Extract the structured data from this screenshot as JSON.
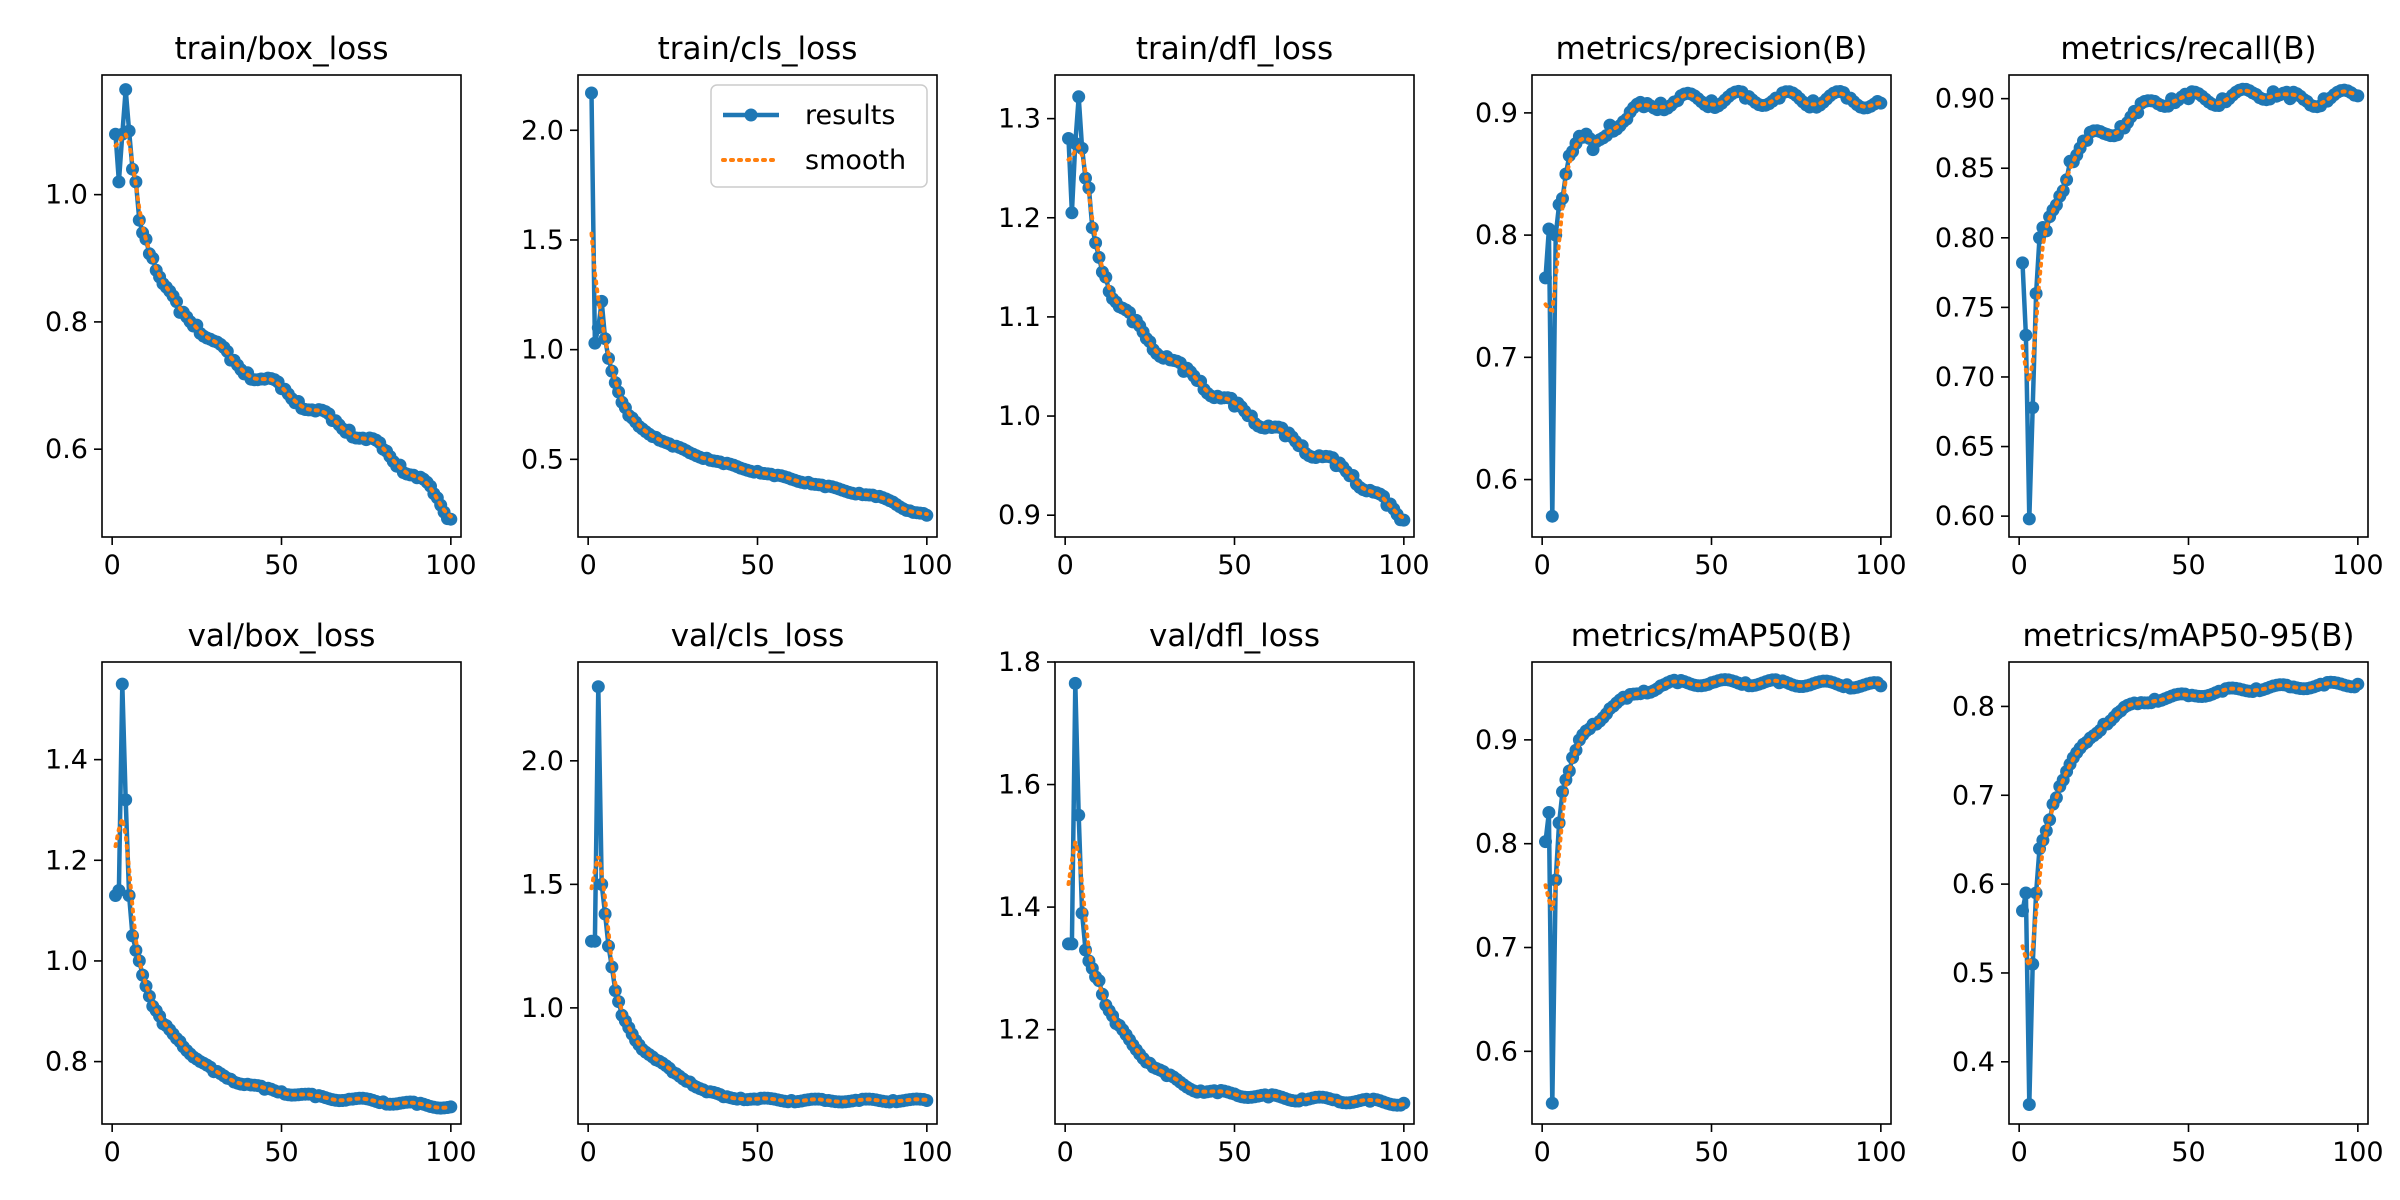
{
  "figure": {
    "rows": 2,
    "cols": 5,
    "colors": {
      "results": "#1f77b4",
      "smooth": "#ff7f0e",
      "axes": "#000000",
      "background": "#ffffff"
    },
    "legend": {
      "panel_index": 1,
      "placement": "upper right",
      "entries": [
        "results",
        "smooth"
      ]
    }
  },
  "chart_data": [
    {
      "type": "line",
      "title": "train/box_loss",
      "xlim": [
        -3,
        103
      ],
      "ylim": [
        0.462,
        1.188
      ],
      "xticks": [
        0,
        50,
        100
      ],
      "xtick_labels": [
        "0",
        "50",
        "100"
      ],
      "yticks": [
        0.6,
        0.8,
        1.0
      ],
      "ytick_labels": [
        "0.6",
        "0.8",
        "1.0"
      ],
      "key_points": [
        [
          1,
          1.095
        ],
        [
          2,
          1.02
        ],
        [
          3,
          1.095
        ],
        [
          4,
          1.165
        ],
        [
          5,
          1.1
        ],
        [
          6,
          1.04
        ],
        [
          7,
          1.02
        ],
        [
          8,
          0.96
        ],
        [
          10,
          0.93
        ],
        [
          12,
          0.9
        ],
        [
          15,
          0.86
        ],
        [
          20,
          0.815
        ],
        [
          25,
          0.795
        ],
        [
          30,
          0.77
        ],
        [
          35,
          0.74
        ],
        [
          40,
          0.72
        ],
        [
          45,
          0.71
        ],
        [
          50,
          0.695
        ],
        [
          55,
          0.675
        ],
        [
          60,
          0.66
        ],
        [
          65,
          0.645
        ],
        [
          70,
          0.63
        ],
        [
          75,
          0.615
        ],
        [
          80,
          0.6
        ],
        [
          85,
          0.575
        ],
        [
          90,
          0.555
        ],
        [
          95,
          0.53
        ],
        [
          100,
          0.49
        ]
      ],
      "noise": 0.008
    },
    {
      "type": "line",
      "title": "train/cls_loss",
      "xlim": [
        -3,
        103
      ],
      "ylim": [
        0.146,
        2.252
      ],
      "xticks": [
        0,
        50,
        100
      ],
      "xtick_labels": [
        "0",
        "50",
        "100"
      ],
      "yticks": [
        0.5,
        1.0,
        1.5,
        2.0
      ],
      "ytick_labels": [
        "0.5",
        "1.0",
        "1.5",
        "2.0"
      ],
      "key_points": [
        [
          1,
          2.17
        ],
        [
          2,
          1.03
        ],
        [
          3,
          1.1
        ],
        [
          4,
          1.22
        ],
        [
          5,
          1.05
        ],
        [
          6,
          0.96
        ],
        [
          8,
          0.85
        ],
        [
          10,
          0.76
        ],
        [
          12,
          0.7
        ],
        [
          15,
          0.65
        ],
        [
          20,
          0.6
        ],
        [
          25,
          0.56
        ],
        [
          30,
          0.53
        ],
        [
          35,
          0.505
        ],
        [
          40,
          0.48
        ],
        [
          45,
          0.46
        ],
        [
          50,
          0.445
        ],
        [
          55,
          0.425
        ],
        [
          60,
          0.41
        ],
        [
          65,
          0.395
        ],
        [
          70,
          0.375
        ],
        [
          75,
          0.36
        ],
        [
          80,
          0.345
        ],
        [
          85,
          0.33
        ],
        [
          90,
          0.305
        ],
        [
          95,
          0.265
        ],
        [
          100,
          0.245
        ]
      ],
      "noise": 0.006
    },
    {
      "type": "line",
      "title": "train/dfl_loss",
      "xlim": [
        -3,
        103
      ],
      "ylim": [
        0.878,
        1.344
      ],
      "xticks": [
        0,
        50,
        100
      ],
      "xtick_labels": [
        "0",
        "50",
        "100"
      ],
      "yticks": [
        0.9,
        1.0,
        1.1,
        1.2,
        1.3
      ],
      "ytick_labels": [
        "0.9",
        "1.0",
        "1.1",
        "1.2",
        "1.3"
      ],
      "key_points": [
        [
          1,
          1.28
        ],
        [
          2,
          1.205
        ],
        [
          3,
          1.275
        ],
        [
          4,
          1.322
        ],
        [
          5,
          1.27
        ],
        [
          6,
          1.24
        ],
        [
          7,
          1.23
        ],
        [
          8,
          1.19
        ],
        [
          10,
          1.16
        ],
        [
          12,
          1.14
        ],
        [
          15,
          1.115
        ],
        [
          20,
          1.095
        ],
        [
          25,
          1.075
        ],
        [
          30,
          1.06
        ],
        [
          35,
          1.045
        ],
        [
          40,
          1.035
        ],
        [
          45,
          1.02
        ],
        [
          50,
          1.01
        ],
        [
          55,
          1.0
        ],
        [
          60,
          0.99
        ],
        [
          65,
          0.98
        ],
        [
          70,
          0.97
        ],
        [
          75,
          0.96
        ],
        [
          80,
          0.95
        ],
        [
          85,
          0.94
        ],
        [
          90,
          0.925
        ],
        [
          95,
          0.91
        ],
        [
          100,
          0.895
        ]
      ],
      "noise": 0.006
    },
    {
      "type": "line",
      "title": "metrics/precision(B)",
      "xlim": [
        -3,
        103
      ],
      "ylim": [
        0.553,
        0.931
      ],
      "xticks": [
        0,
        50,
        100
      ],
      "xtick_labels": [
        "0",
        "50",
        "100"
      ],
      "yticks": [
        0.6,
        0.7,
        0.8,
        0.9
      ],
      "ytick_labels": [
        "0.6",
        "0.7",
        "0.8",
        "0.9"
      ],
      "key_points": [
        [
          1,
          0.765
        ],
        [
          2,
          0.805
        ],
        [
          3,
          0.57
        ],
        [
          4,
          0.8
        ],
        [
          5,
          0.825
        ],
        [
          6,
          0.83
        ],
        [
          7,
          0.85
        ],
        [
          8,
          0.865
        ],
        [
          10,
          0.875
        ],
        [
          12,
          0.88
        ],
        [
          15,
          0.87
        ],
        [
          20,
          0.89
        ],
        [
          25,
          0.895
        ],
        [
          30,
          0.905
        ],
        [
          35,
          0.908
        ],
        [
          40,
          0.91
        ],
        [
          50,
          0.91
        ],
        [
          60,
          0.912
        ],
        [
          70,
          0.912
        ],
        [
          80,
          0.91
        ],
        [
          90,
          0.912
        ],
        [
          100,
          0.908
        ]
      ],
      "noise": 0.006
    },
    {
      "type": "line",
      "title": "metrics/recall(B)",
      "xlim": [
        -3,
        103
      ],
      "ylim": [
        0.585,
        0.917
      ],
      "xticks": [
        0,
        50,
        100
      ],
      "xtick_labels": [
        "0",
        "50",
        "100"
      ],
      "yticks": [
        0.6,
        0.65,
        0.7,
        0.75,
        0.8,
        0.85,
        0.9
      ],
      "ytick_labels": [
        "0.60",
        "0.65",
        "0.70",
        "0.75",
        "0.80",
        "0.85",
        "0.90"
      ],
      "key_points": [
        [
          1,
          0.782
        ],
        [
          2,
          0.73
        ],
        [
          3,
          0.598
        ],
        [
          4,
          0.678
        ],
        [
          5,
          0.76
        ],
        [
          6,
          0.8
        ],
        [
          8,
          0.805
        ],
        [
          10,
          0.82
        ],
        [
          12,
          0.83
        ],
        [
          15,
          0.855
        ],
        [
          20,
          0.87
        ],
        [
          25,
          0.875
        ],
        [
          30,
          0.88
        ],
        [
          35,
          0.89
        ],
        [
          40,
          0.898
        ],
        [
          45,
          0.9
        ],
        [
          50,
          0.9
        ],
        [
          60,
          0.9
        ],
        [
          70,
          0.903
        ],
        [
          75,
          0.905
        ],
        [
          80,
          0.9
        ],
        [
          85,
          0.898
        ],
        [
          90,
          0.9
        ],
        [
          100,
          0.902
        ]
      ],
      "noise": 0.005
    },
    {
      "type": "line",
      "title": "val/box_loss",
      "xlim": [
        -3,
        103
      ],
      "ylim": [
        0.676,
        1.594
      ],
      "xticks": [
        0,
        50,
        100
      ],
      "xtick_labels": [
        "0",
        "50",
        "100"
      ],
      "yticks": [
        0.8,
        1.0,
        1.2,
        1.4
      ],
      "ytick_labels": [
        "0.8",
        "1.0",
        "1.2",
        "1.4"
      ],
      "key_points": [
        [
          1,
          1.13
        ],
        [
          2,
          1.14
        ],
        [
          3,
          1.55
        ],
        [
          4,
          1.32
        ],
        [
          5,
          1.13
        ],
        [
          6,
          1.05
        ],
        [
          8,
          1.0
        ],
        [
          10,
          0.95
        ],
        [
          12,
          0.91
        ],
        [
          15,
          0.875
        ],
        [
          20,
          0.84
        ],
        [
          25,
          0.805
        ],
        [
          30,
          0.78
        ],
        [
          35,
          0.765
        ],
        [
          40,
          0.755
        ],
        [
          45,
          0.745
        ],
        [
          50,
          0.74
        ],
        [
          60,
          0.73
        ],
        [
          70,
          0.725
        ],
        [
          80,
          0.72
        ],
        [
          90,
          0.715
        ],
        [
          100,
          0.71
        ]
      ],
      "noise": 0.004
    },
    {
      "type": "line",
      "title": "val/cls_loss",
      "xlim": [
        -3,
        103
      ],
      "ylim": [
        0.53,
        2.4
      ],
      "xticks": [
        0,
        50,
        100
      ],
      "xtick_labels": [
        "0",
        "50",
        "100"
      ],
      "yticks": [
        1.0,
        1.5,
        2.0
      ],
      "ytick_labels": [
        "1.0",
        "1.5",
        "2.0"
      ],
      "key_points": [
        [
          1,
          1.27
        ],
        [
          2,
          1.27
        ],
        [
          3,
          2.3
        ],
        [
          4,
          1.5
        ],
        [
          5,
          1.38
        ],
        [
          6,
          1.25
        ],
        [
          8,
          1.07
        ],
        [
          10,
          0.97
        ],
        [
          12,
          0.92
        ],
        [
          15,
          0.85
        ],
        [
          20,
          0.79
        ],
        [
          25,
          0.74
        ],
        [
          30,
          0.7
        ],
        [
          35,
          0.66
        ],
        [
          40,
          0.64
        ],
        [
          45,
          0.635
        ],
        [
          50,
          0.63
        ],
        [
          60,
          0.625
        ],
        [
          70,
          0.625
        ],
        [
          80,
          0.625
        ],
        [
          90,
          0.625
        ],
        [
          100,
          0.625
        ]
      ],
      "noise": 0.006
    },
    {
      "type": "line",
      "title": "val/dfl_loss",
      "xlim": [
        -3,
        103
      ],
      "ylim": [
        1.046,
        1.8
      ],
      "xticks": [
        0,
        50,
        100
      ],
      "xtick_labels": [
        "0",
        "50",
        "100"
      ],
      "yticks": [
        1.2,
        1.4,
        1.6,
        1.8
      ],
      "ytick_labels": [
        "1.2",
        "1.4",
        "1.6",
        "1.8"
      ],
      "key_points": [
        [
          1,
          1.34
        ],
        [
          2,
          1.34
        ],
        [
          3,
          1.765
        ],
        [
          4,
          1.55
        ],
        [
          5,
          1.39
        ],
        [
          6,
          1.33
        ],
        [
          8,
          1.3
        ],
        [
          10,
          1.28
        ],
        [
          12,
          1.24
        ],
        [
          15,
          1.21
        ],
        [
          20,
          1.175
        ],
        [
          25,
          1.145
        ],
        [
          30,
          1.125
        ],
        [
          35,
          1.11
        ],
        [
          40,
          1.1
        ],
        [
          45,
          1.097
        ],
        [
          50,
          1.095
        ],
        [
          60,
          1.09
        ],
        [
          70,
          1.087
        ],
        [
          80,
          1.085
        ],
        [
          90,
          1.083
        ],
        [
          100,
          1.08
        ]
      ],
      "noise": 0.004
    },
    {
      "type": "line",
      "title": "metrics/mAP50(B)",
      "xlim": [
        -3,
        103
      ],
      "ylim": [
        0.53,
        0.975
      ],
      "xticks": [
        0,
        50,
        100
      ],
      "xtick_labels": [
        "0",
        "50",
        "100"
      ],
      "yticks": [
        0.6,
        0.7,
        0.8,
        0.9
      ],
      "ytick_labels": [
        "0.6",
        "0.7",
        "0.8",
        "0.9"
      ],
      "key_points": [
        [
          1,
          0.802
        ],
        [
          2,
          0.83
        ],
        [
          3,
          0.55
        ],
        [
          4,
          0.765
        ],
        [
          5,
          0.82
        ],
        [
          6,
          0.85
        ],
        [
          8,
          0.87
        ],
        [
          10,
          0.89
        ],
        [
          12,
          0.905
        ],
        [
          15,
          0.915
        ],
        [
          20,
          0.93
        ],
        [
          25,
          0.94
        ],
        [
          30,
          0.947
        ],
        [
          35,
          0.952
        ],
        [
          40,
          0.955
        ],
        [
          50,
          0.955
        ],
        [
          60,
          0.955
        ],
        [
          70,
          0.955
        ],
        [
          80,
          0.954
        ],
        [
          90,
          0.953
        ],
        [
          100,
          0.952
        ]
      ],
      "noise": 0.003
    },
    {
      "type": "line",
      "title": "metrics/mAP50-95(B)",
      "xlim": [
        -3,
        103
      ],
      "ylim": [
        0.33,
        0.85
      ],
      "xticks": [
        0,
        50,
        100
      ],
      "xtick_labels": [
        "0",
        "50",
        "100"
      ],
      "yticks": [
        0.4,
        0.5,
        0.6,
        0.7,
        0.8
      ],
      "ytick_labels": [
        "0.4",
        "0.5",
        "0.6",
        "0.7",
        "0.8"
      ],
      "key_points": [
        [
          1,
          0.57
        ],
        [
          2,
          0.59
        ],
        [
          3,
          0.352
        ],
        [
          4,
          0.51
        ],
        [
          5,
          0.59
        ],
        [
          6,
          0.64
        ],
        [
          8,
          0.66
        ],
        [
          10,
          0.69
        ],
        [
          12,
          0.71
        ],
        [
          15,
          0.735
        ],
        [
          20,
          0.76
        ],
        [
          25,
          0.78
        ],
        [
          30,
          0.795
        ],
        [
          35,
          0.803
        ],
        [
          40,
          0.808
        ],
        [
          50,
          0.812
        ],
        [
          60,
          0.817
        ],
        [
          70,
          0.82
        ],
        [
          80,
          0.822
        ],
        [
          90,
          0.824
        ],
        [
          100,
          0.825
        ]
      ],
      "noise": 0.003
    }
  ]
}
